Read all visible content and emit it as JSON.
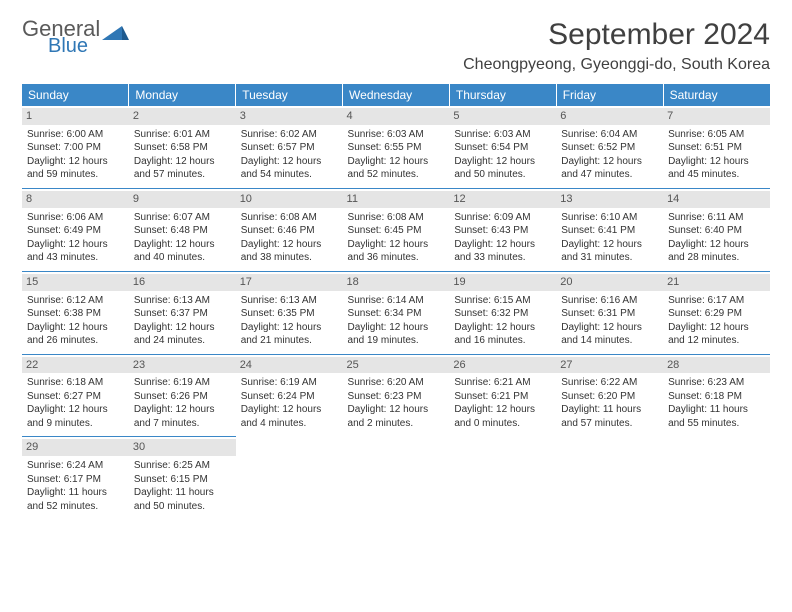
{
  "logo": {
    "general": "General",
    "blue": "Blue"
  },
  "title": "September 2024",
  "location": "Cheongpyeong, Gyeonggi-do, South Korea",
  "colors": {
    "header_bg": "#3a87c7",
    "header_text": "#ffffff",
    "daynum_bg": "#e5e5e5",
    "daynum_text": "#555555",
    "rule": "#3a87c7",
    "body_text": "#333333",
    "logo_gray": "#5a5a5a",
    "logo_blue": "#2f77b5"
  },
  "weekdays": [
    "Sunday",
    "Monday",
    "Tuesday",
    "Wednesday",
    "Thursday",
    "Friday",
    "Saturday"
  ],
  "weeks": [
    [
      {
        "n": "1",
        "sr": "6:00 AM",
        "ss": "7:00 PM",
        "dh": "12",
        "dm": "59"
      },
      {
        "n": "2",
        "sr": "6:01 AM",
        "ss": "6:58 PM",
        "dh": "12",
        "dm": "57"
      },
      {
        "n": "3",
        "sr": "6:02 AM",
        "ss": "6:57 PM",
        "dh": "12",
        "dm": "54"
      },
      {
        "n": "4",
        "sr": "6:03 AM",
        "ss": "6:55 PM",
        "dh": "12",
        "dm": "52"
      },
      {
        "n": "5",
        "sr": "6:03 AM",
        "ss": "6:54 PM",
        "dh": "12",
        "dm": "50"
      },
      {
        "n": "6",
        "sr": "6:04 AM",
        "ss": "6:52 PM",
        "dh": "12",
        "dm": "47"
      },
      {
        "n": "7",
        "sr": "6:05 AM",
        "ss": "6:51 PM",
        "dh": "12",
        "dm": "45"
      }
    ],
    [
      {
        "n": "8",
        "sr": "6:06 AM",
        "ss": "6:49 PM",
        "dh": "12",
        "dm": "43"
      },
      {
        "n": "9",
        "sr": "6:07 AM",
        "ss": "6:48 PM",
        "dh": "12",
        "dm": "40"
      },
      {
        "n": "10",
        "sr": "6:08 AM",
        "ss": "6:46 PM",
        "dh": "12",
        "dm": "38"
      },
      {
        "n": "11",
        "sr": "6:08 AM",
        "ss": "6:45 PM",
        "dh": "12",
        "dm": "36"
      },
      {
        "n": "12",
        "sr": "6:09 AM",
        "ss": "6:43 PM",
        "dh": "12",
        "dm": "33"
      },
      {
        "n": "13",
        "sr": "6:10 AM",
        "ss": "6:41 PM",
        "dh": "12",
        "dm": "31"
      },
      {
        "n": "14",
        "sr": "6:11 AM",
        "ss": "6:40 PM",
        "dh": "12",
        "dm": "28"
      }
    ],
    [
      {
        "n": "15",
        "sr": "6:12 AM",
        "ss": "6:38 PM",
        "dh": "12",
        "dm": "26"
      },
      {
        "n": "16",
        "sr": "6:13 AM",
        "ss": "6:37 PM",
        "dh": "12",
        "dm": "24"
      },
      {
        "n": "17",
        "sr": "6:13 AM",
        "ss": "6:35 PM",
        "dh": "12",
        "dm": "21"
      },
      {
        "n": "18",
        "sr": "6:14 AM",
        "ss": "6:34 PM",
        "dh": "12",
        "dm": "19"
      },
      {
        "n": "19",
        "sr": "6:15 AM",
        "ss": "6:32 PM",
        "dh": "12",
        "dm": "16"
      },
      {
        "n": "20",
        "sr": "6:16 AM",
        "ss": "6:31 PM",
        "dh": "12",
        "dm": "14"
      },
      {
        "n": "21",
        "sr": "6:17 AM",
        "ss": "6:29 PM",
        "dh": "12",
        "dm": "12"
      }
    ],
    [
      {
        "n": "22",
        "sr": "6:18 AM",
        "ss": "6:27 PM",
        "dh": "12",
        "dm": "9"
      },
      {
        "n": "23",
        "sr": "6:19 AM",
        "ss": "6:26 PM",
        "dh": "12",
        "dm": "7"
      },
      {
        "n": "24",
        "sr": "6:19 AM",
        "ss": "6:24 PM",
        "dh": "12",
        "dm": "4"
      },
      {
        "n": "25",
        "sr": "6:20 AM",
        "ss": "6:23 PM",
        "dh": "12",
        "dm": "2"
      },
      {
        "n": "26",
        "sr": "6:21 AM",
        "ss": "6:21 PM",
        "dh": "12",
        "dm": "0"
      },
      {
        "n": "27",
        "sr": "6:22 AM",
        "ss": "6:20 PM",
        "dh": "11",
        "dm": "57"
      },
      {
        "n": "28",
        "sr": "6:23 AM",
        "ss": "6:18 PM",
        "dh": "11",
        "dm": "55"
      }
    ],
    [
      {
        "n": "29",
        "sr": "6:24 AM",
        "ss": "6:17 PM",
        "dh": "11",
        "dm": "52"
      },
      {
        "n": "30",
        "sr": "6:25 AM",
        "ss": "6:15 PM",
        "dh": "11",
        "dm": "50"
      },
      null,
      null,
      null,
      null,
      null
    ]
  ],
  "labels": {
    "sunrise": "Sunrise: ",
    "sunset": "Sunset: ",
    "daylight_a": "Daylight: ",
    "daylight_b": " hours and ",
    "daylight_c": " minutes."
  }
}
